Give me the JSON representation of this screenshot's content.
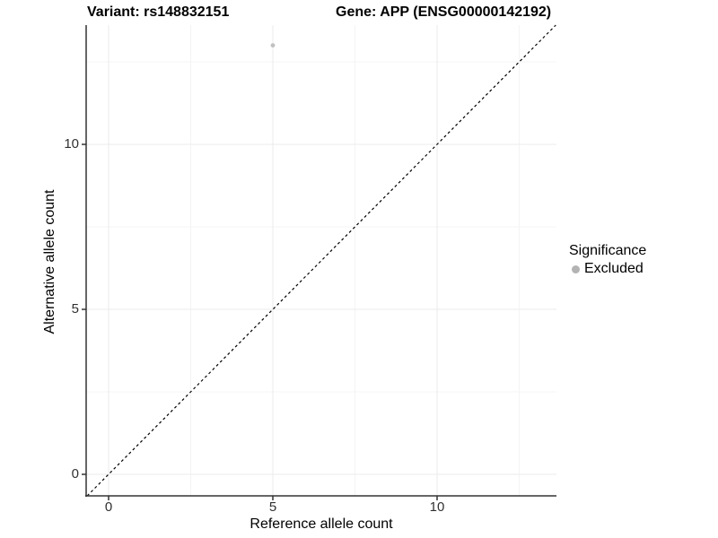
{
  "chart_data": {
    "type": "scatter",
    "titles": [
      "Variant: rs148832151",
      "Gene: APP (ENSG00000142192)"
    ],
    "xlabel": "Reference allele count",
    "ylabel": "Alternative allele count",
    "xlim": [
      -0.65,
      13.65
    ],
    "ylim": [
      -0.65,
      13.65
    ],
    "x_ticks": [
      0,
      5,
      10
    ],
    "y_ticks": [
      0,
      5,
      10
    ],
    "grid": true,
    "legend_position": "right",
    "legend_title": "Significance",
    "series": [
      {
        "name": "Excluded",
        "color": "#c0c0c0",
        "points": [
          [
            5,
            13
          ]
        ]
      }
    ],
    "reference_line": {
      "kind": "identity y=x",
      "style": "dashed",
      "color": "#000000"
    }
  },
  "colors": {
    "background": "#ffffff",
    "axis": "#333333",
    "tick_label": "#303030",
    "grid_major": "#ebebeb",
    "grid_minor": "#f4f4f4",
    "legend_key": "#b3b3b3",
    "reference_line": "#000000"
  }
}
